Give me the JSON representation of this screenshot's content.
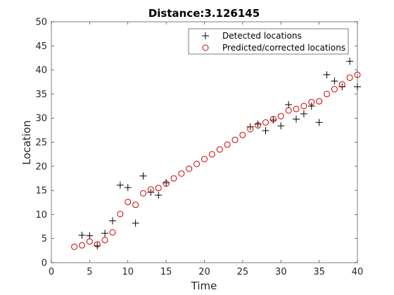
{
  "chart_data": {
    "type": "scatter",
    "title": "Distance:3.126145",
    "xlabel": "Time",
    "ylabel": "Location",
    "xlim": [
      0,
      40
    ],
    "ylim": [
      0,
      50
    ],
    "xticks": [
      0,
      5,
      10,
      15,
      20,
      25,
      30,
      35,
      40
    ],
    "yticks": [
      0,
      5,
      10,
      15,
      20,
      25,
      30,
      35,
      40,
      45,
      50
    ],
    "grid": false,
    "legend_position": "top-right",
    "series": [
      {
        "name": "Detected locations",
        "marker": "plus",
        "color": "#000000",
        "x": [
          4,
          5,
          6,
          7,
          8,
          9,
          10,
          11,
          12,
          13,
          14,
          15,
          26,
          27,
          28,
          29,
          30,
          31,
          32,
          33,
          34,
          35,
          36,
          37,
          38,
          39,
          40
        ],
        "y": [
          5.7,
          5.6,
          3.5,
          6.1,
          8.7,
          16.1,
          15.6,
          8.2,
          18.0,
          14.6,
          14.0,
          16.6,
          28.2,
          28.8,
          27.4,
          29.6,
          28.4,
          32.8,
          29.8,
          30.9,
          32.5,
          29.1,
          39.0,
          37.7,
          36.5,
          41.8,
          36.5
        ]
      },
      {
        "name": "Predicted/corrected locations",
        "marker": "circle",
        "color": "#cc0000",
        "x": [
          3,
          4,
          5,
          6,
          7,
          8,
          9,
          10,
          11,
          12,
          13,
          14,
          15,
          16,
          17,
          18,
          19,
          20,
          21,
          22,
          23,
          24,
          25,
          26,
          27,
          28,
          29,
          30,
          31,
          32,
          33,
          34,
          35,
          36,
          37,
          38,
          39,
          40
        ],
        "y": [
          3.3,
          3.6,
          4.4,
          3.8,
          4.7,
          6.3,
          10.1,
          12.6,
          12.0,
          14.4,
          15.2,
          15.5,
          16.4,
          17.5,
          18.5,
          19.5,
          20.5,
          21.5,
          22.5,
          23.5,
          24.5,
          25.5,
          26.5,
          27.7,
          28.5,
          29.1,
          29.8,
          30.4,
          31.6,
          31.9,
          32.5,
          33.3,
          33.5,
          35.0,
          36.0,
          37.0,
          38.4,
          39.0
        ]
      }
    ]
  }
}
